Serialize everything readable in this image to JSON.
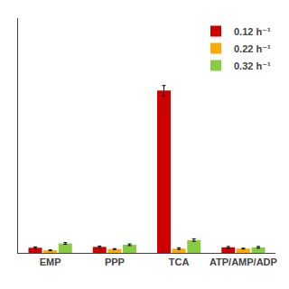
{
  "chart_data": {
    "type": "bar",
    "categories": [
      "EMP",
      "PPP",
      "TCA",
      "ATP/AMP/ADP"
    ],
    "series": [
      {
        "name": "0.12 h⁻¹",
        "color": "#cc0000",
        "values": [
          0.012,
          0.014,
          0.38,
          0.013
        ],
        "errors": [
          0.002,
          0.002,
          0.012,
          0.002
        ]
      },
      {
        "name": "0.22 h⁻¹",
        "color": "#ffaa00",
        "values": [
          0.006,
          0.009,
          0.01,
          0.01
        ],
        "errors": [
          0.001,
          0.001,
          0.002,
          0.001
        ]
      },
      {
        "name": "0.32 h⁻¹",
        "color": "#88cc44",
        "values": [
          0.022,
          0.019,
          0.03,
          0.013
        ],
        "errors": [
          0.002,
          0.002,
          0.003,
          0.002
        ]
      }
    ],
    "ylim": [
      0,
      0.55
    ],
    "yticks": [],
    "grid": false,
    "legend": "upper right",
    "tick_labels": "x"
  }
}
